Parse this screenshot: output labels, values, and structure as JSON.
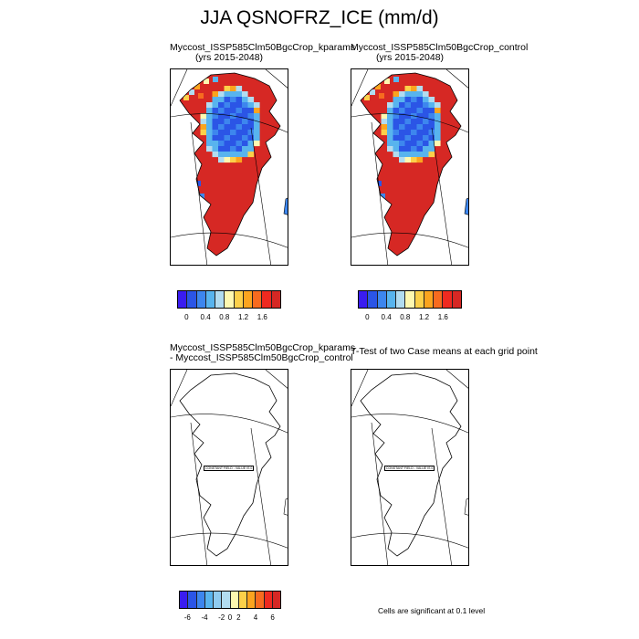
{
  "main_title": "JJA QSNOFRZ_ICE (mm/d)",
  "colors": {
    "fill_levels": [
      "#3a1cf0",
      "#2b55e6",
      "#3d86ee",
      "#58b4ee",
      "#b2dcf0",
      "#fff8b0",
      "#fcd04a",
      "#fba41f",
      "#f76b1f",
      "#ef2a20",
      "#d62824"
    ],
    "diff_levels": [
      "#3a1cf0",
      "#2b55e6",
      "#3d86ee",
      "#58b4ee",
      "#8fcbf0",
      "#b2dcf0",
      "#fff8b0",
      "#fcd04a",
      "#fba41f",
      "#f76b1f",
      "#ef2a20",
      "#d62824"
    ]
  },
  "chart_data": [
    {
      "type": "heatmap",
      "panel": "top-left",
      "title": "Myccost_ISSP585Clm50BgcCrop_kparams",
      "subtitle": "(yrs 2015-2048)",
      "colorbar_ticks": [
        "0",
        "0.4",
        "0.8",
        "1.2",
        "1.6"
      ]
    },
    {
      "type": "heatmap",
      "panel": "top-right",
      "title": "Myccost_ISSP585Clm50BgcCrop_control",
      "subtitle": "(yrs 2015-2048)",
      "colorbar_ticks": [
        "0",
        "0.4",
        "0.8",
        "1.2",
        "1.6"
      ]
    },
    {
      "type": "heatmap",
      "panel": "bottom-left",
      "title": "Myccost_ISSP585Clm50BgcCrop_kparams",
      "subtitle": "- Myccost_ISSP585Clm50BgcCrop_control",
      "label": "CONSTANT FIELD - VALUE IS 0",
      "colorbar_ticks": [
        "-6",
        "-4",
        "-2",
        "0",
        "2",
        "4",
        "6"
      ]
    },
    {
      "type": "heatmap",
      "panel": "bottom-right",
      "title": "T-Test of two Case means at each grid point",
      "label": "CONSTANT FIELD - VALUE IS 0"
    }
  ],
  "significance_note": "Cells are significant at 0.1 level"
}
